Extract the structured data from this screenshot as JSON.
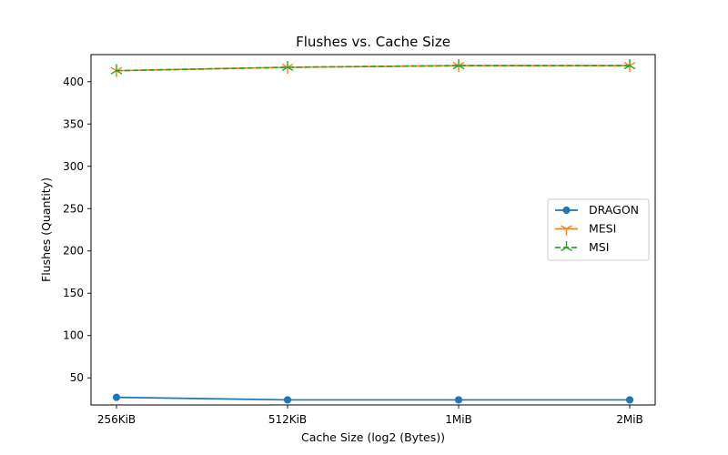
{
  "chart_data": {
    "type": "line",
    "title": "Flushes vs. Cache Size",
    "xlabel": "Cache Size (log2 (Bytes))",
    "ylabel": "Flushes (Quantity)",
    "categories": [
      "256KiB",
      "512KiB",
      "1MiB",
      "2MiB"
    ],
    "ylim": [
      18,
      432
    ],
    "yticks": [
      50,
      100,
      150,
      200,
      250,
      300,
      350,
      400
    ],
    "grid": false,
    "legend_position": "center-right",
    "series": [
      {
        "name": "DRAGON",
        "values": [
          27,
          24,
          24,
          24
        ],
        "color": "#1f77b4",
        "marker": "circle",
        "line_style": "solid"
      },
      {
        "name": "MESI",
        "values": [
          413,
          417,
          419,
          419
        ],
        "color": "#ff7f0e",
        "marker": "tri-down",
        "line_style": "solid"
      },
      {
        "name": "MSI",
        "values": [
          413,
          417,
          419,
          419
        ],
        "color": "#2ca02c",
        "marker": "tri-up",
        "line_style": "dashed"
      }
    ]
  }
}
